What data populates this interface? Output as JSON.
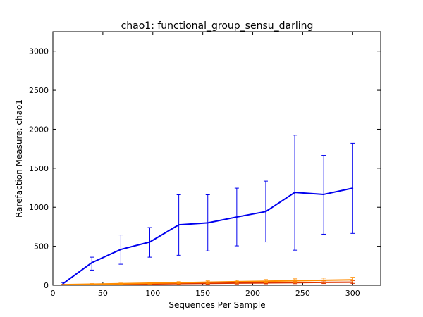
{
  "chart_data": {
    "type": "line",
    "title": "chao1: functional_group_sensu_darling",
    "xlabel": "Sequences Per Sample",
    "ylabel": "Rarefaction Measure: chao1",
    "xlim": [
      0,
      328
    ],
    "ylim": [
      0,
      3250
    ],
    "xticks": [
      0,
      50,
      100,
      150,
      200,
      250,
      300
    ],
    "yticks": [
      0,
      500,
      1000,
      1500,
      2000,
      2500,
      3000
    ],
    "grid": false,
    "legend": "none",
    "series": [
      {
        "color": "#0000ee",
        "x": [
          10,
          39,
          68,
          97,
          126,
          155,
          184,
          213,
          242,
          271,
          300
        ],
        "y": [
          20,
          290,
          460,
          555,
          775,
          800,
          875,
          945,
          1190,
          1165,
          1245
        ],
        "err_low": [
          5,
          195,
          270,
          360,
          385,
          440,
          505,
          555,
          450,
          655,
          665
        ],
        "err_high": [
          35,
          360,
          645,
          740,
          1160,
          1160,
          1245,
          1335,
          1925,
          1665,
          1820
        ]
      },
      {
        "color": "#ff8c00",
        "x": [
          10,
          39,
          68,
          97,
          126,
          155,
          184,
          213,
          242,
          271,
          300
        ],
        "y": [
          8,
          14,
          20,
          27,
          33,
          40,
          46,
          52,
          58,
          64,
          70
        ],
        "err_low": [
          3,
          7,
          12,
          17,
          20,
          24,
          28,
          31,
          34,
          38,
          40
        ],
        "err_high": [
          13,
          21,
          28,
          37,
          46,
          56,
          64,
          73,
          82,
          92,
          102
        ]
      },
      {
        "color": "#dd3300",
        "x": [
          10,
          39,
          68,
          97,
          126,
          155,
          184,
          213,
          242,
          271,
          300
        ],
        "y": [
          5,
          9,
          13,
          17,
          21,
          25,
          28,
          31,
          34,
          37,
          40
        ],
        "err_low": [
          2,
          4,
          7,
          9,
          12,
          14,
          16,
          18,
          20,
          22,
          24
        ],
        "err_high": [
          8,
          14,
          19,
          25,
          30,
          36,
          41,
          46,
          51,
          56,
          60
        ]
      }
    ]
  }
}
